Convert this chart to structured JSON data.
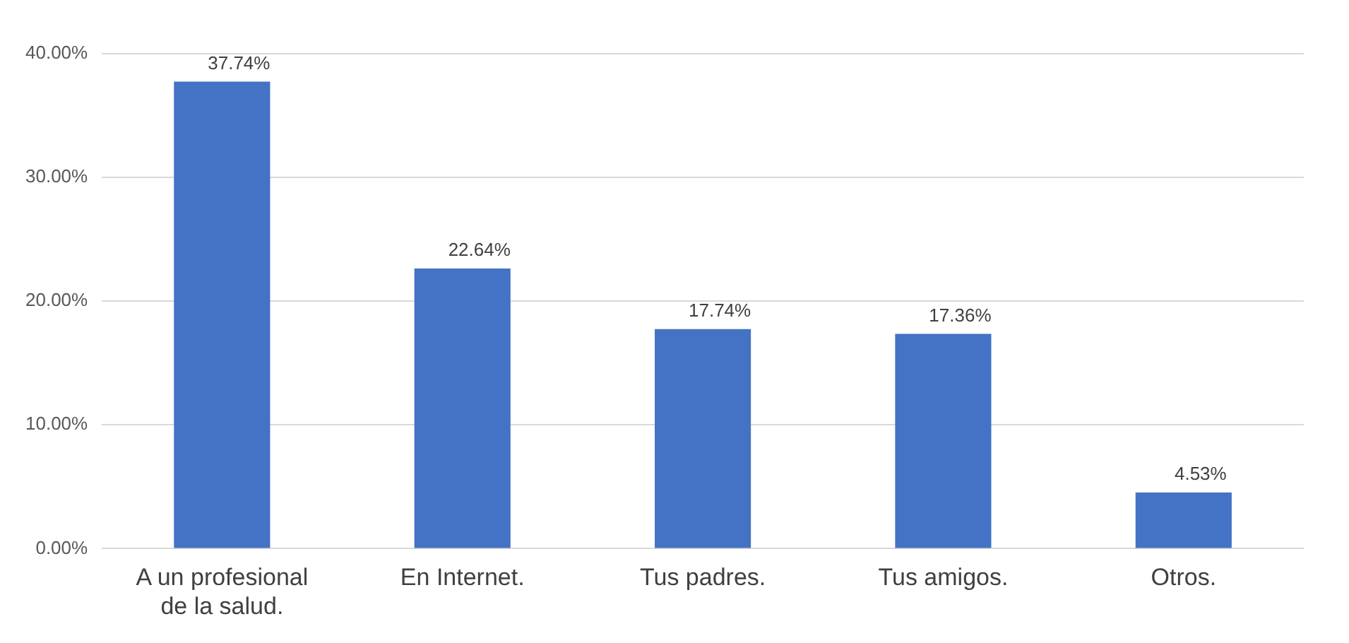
{
  "chart_data": {
    "type": "bar",
    "categories": [
      "A un profesional de la salud.",
      "En Internet.",
      "Tus padres.",
      "Tus amigos.",
      "Otros."
    ],
    "values": [
      37.74,
      22.64,
      17.74,
      17.36,
      4.53
    ],
    "value_labels": [
      "37.74%",
      "22.64%",
      "17.74%",
      "17.36%",
      "4.53%"
    ],
    "color": "#4472c4",
    "ylim": [
      0,
      40
    ],
    "yticks": [
      {
        "value": 0,
        "label": "0.00%"
      },
      {
        "value": 10,
        "label": "10.00%"
      },
      {
        "value": 20,
        "label": "20.00%"
      },
      {
        "value": 30,
        "label": "30.00%"
      },
      {
        "value": 40,
        "label": "40.00%"
      }
    ],
    "grid": "y",
    "legend": false
  }
}
